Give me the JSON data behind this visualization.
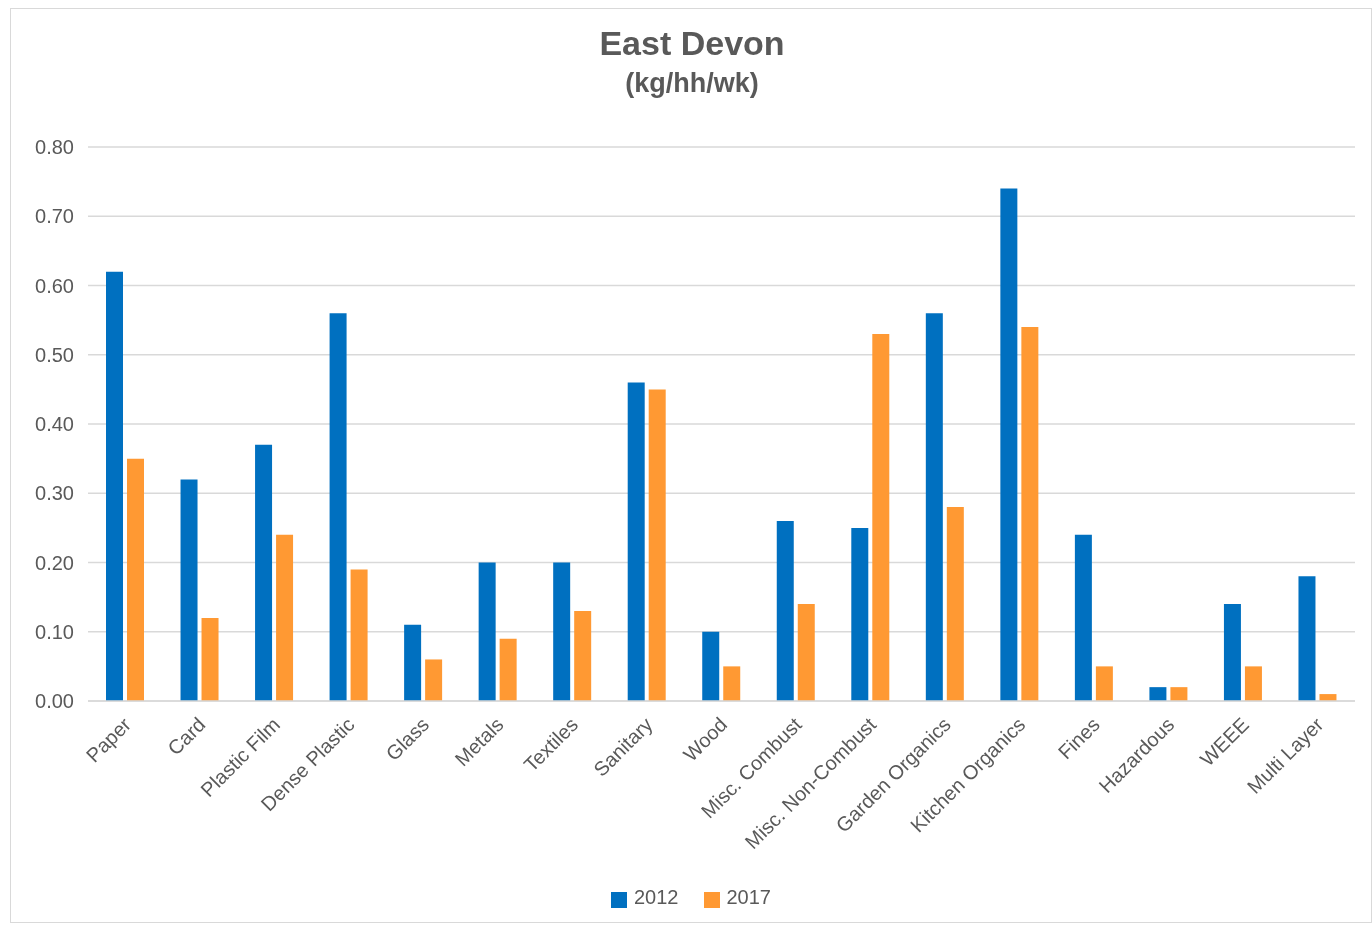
{
  "chart_data": {
    "type": "bar",
    "title": "East Devon",
    "subtitle": "(kg/hh/wk)",
    "categories": [
      "Paper",
      "Card",
      "Plastic Film",
      "Dense Plastic",
      "Glass",
      "Metals",
      "Textiles",
      "Sanitary",
      "Wood",
      "Misc. Combust",
      "Misc. Non-Combust",
      "Garden Organics",
      "Kitchen Organics",
      "Fines",
      "Hazardous",
      "WEEE",
      "Multi Layer"
    ],
    "series": [
      {
        "name": "2012",
        "color": "#0070c0",
        "values": [
          0.62,
          0.32,
          0.37,
          0.56,
          0.11,
          0.2,
          0.2,
          0.46,
          0.1,
          0.26,
          0.25,
          0.56,
          0.74,
          0.24,
          0.02,
          0.14,
          0.18
        ]
      },
      {
        "name": "2017",
        "color": "#ff9933",
        "values": [
          0.35,
          0.12,
          0.24,
          0.19,
          0.06,
          0.09,
          0.13,
          0.45,
          0.05,
          0.14,
          0.53,
          0.28,
          0.54,
          0.05,
          0.02,
          0.05,
          0.01
        ]
      }
    ],
    "ylim": [
      0,
      0.8
    ],
    "yticks": [
      {
        "value": 0,
        "label": "0.00"
      },
      {
        "value": 0.1,
        "label": "0.10"
      },
      {
        "value": 0.2,
        "label": "0.20"
      },
      {
        "value": 0.3,
        "label": "0.30"
      },
      {
        "value": 0.4,
        "label": "0.40"
      },
      {
        "value": 0.5,
        "label": "0.50"
      },
      {
        "value": 0.6,
        "label": "0.60"
      },
      {
        "value": 0.7,
        "label": "0.70"
      },
      {
        "value": 0.8,
        "label": "0.80"
      }
    ],
    "grid": "y",
    "legend": "bottom"
  }
}
